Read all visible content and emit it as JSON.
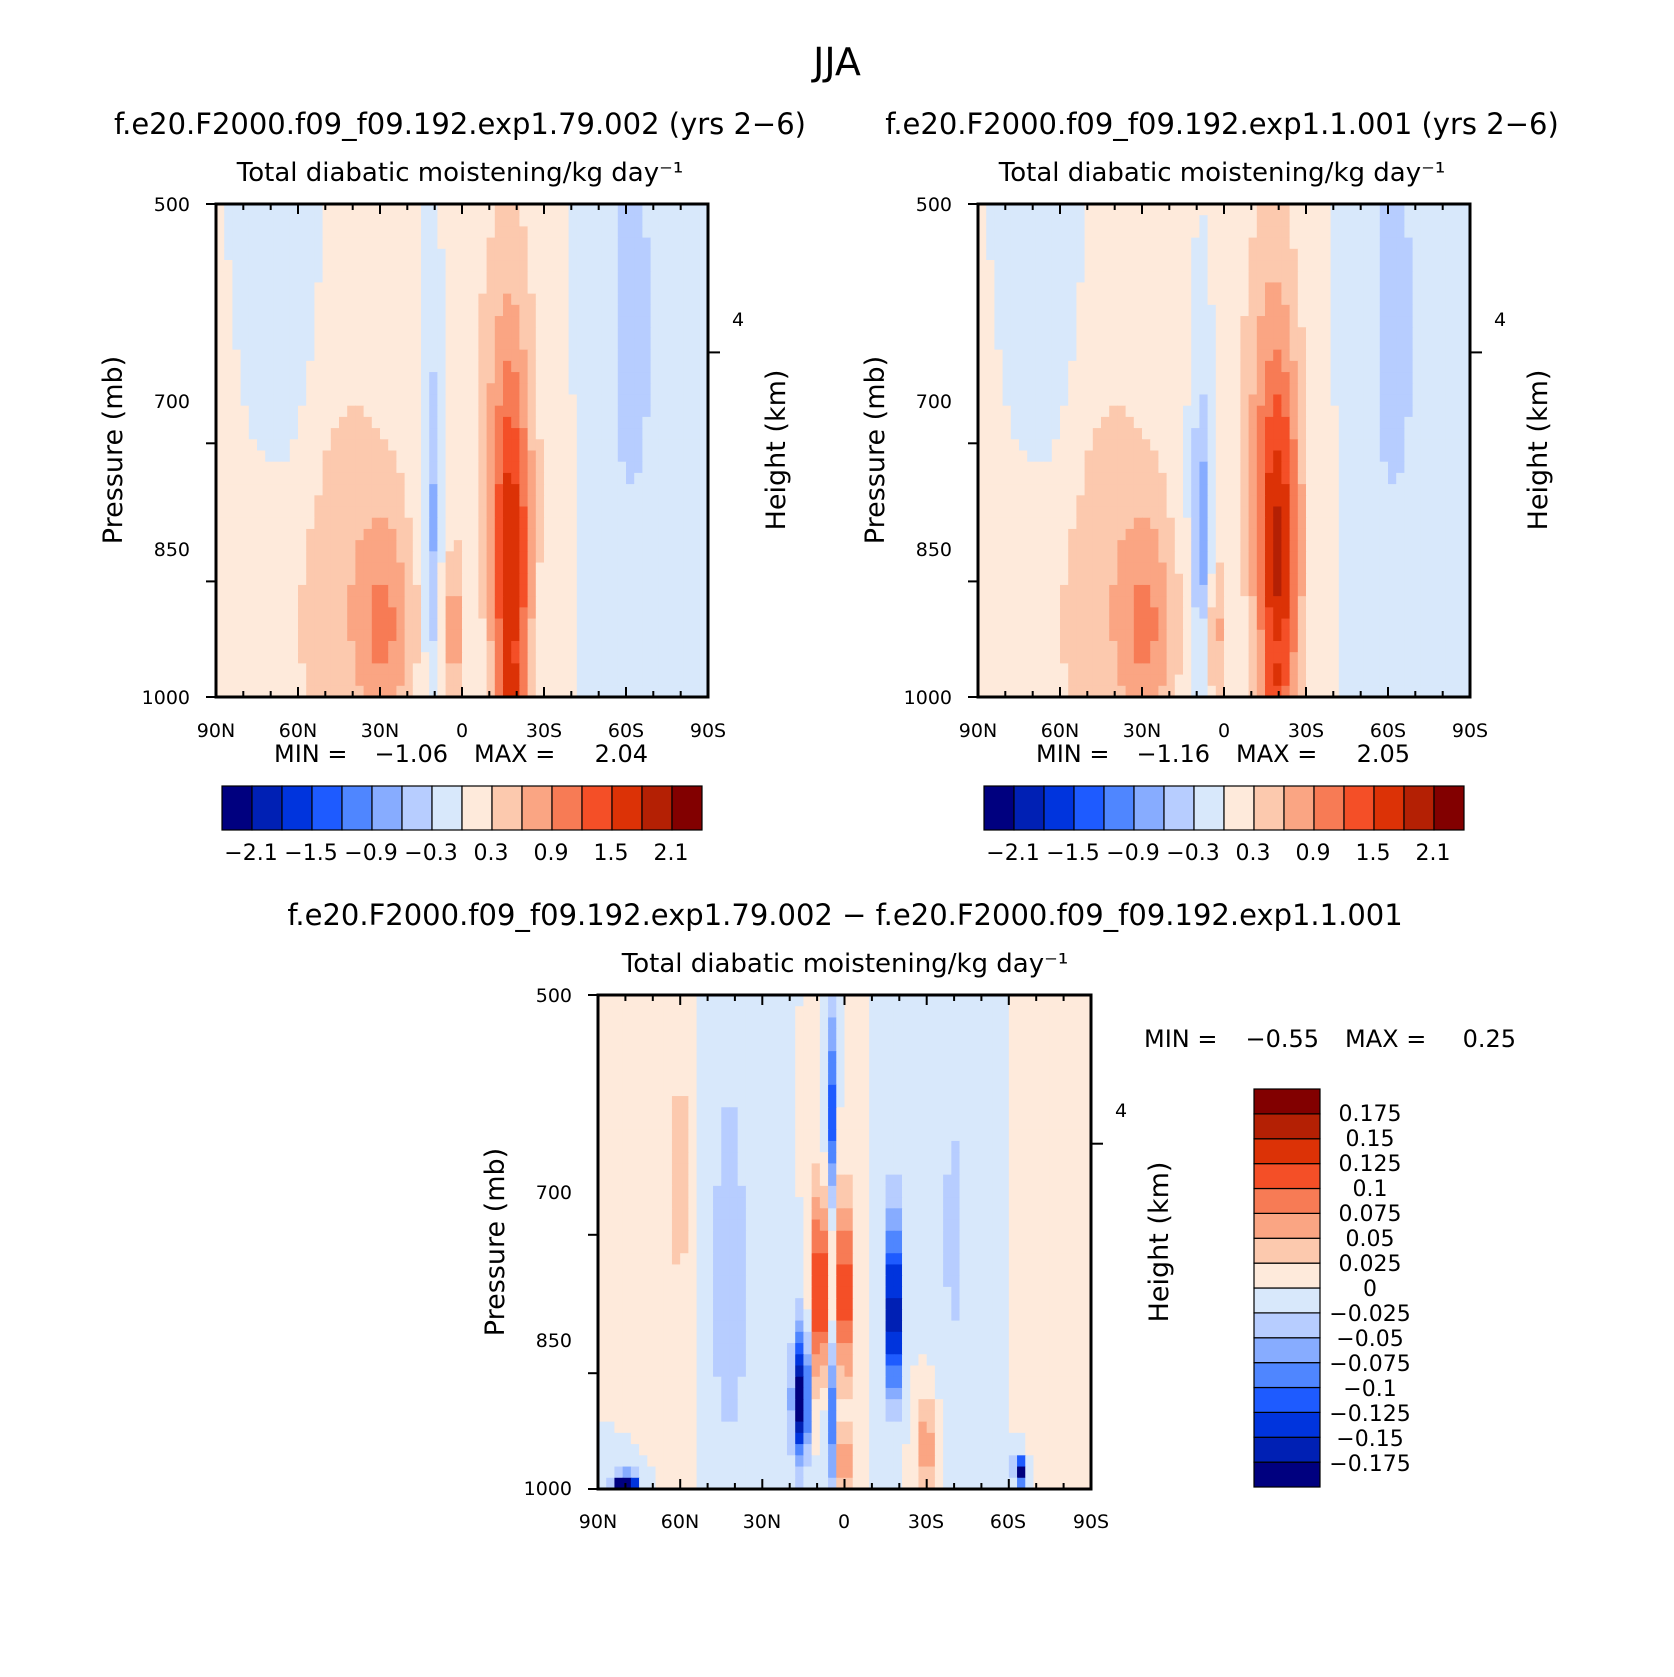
{
  "figure": {
    "season": "JJA"
  },
  "colors": {
    "abs": [
      "#00007f",
      "#0020b4",
      "#0034dd",
      "#1e5bff",
      "#4f86ff",
      "#87acff",
      "#b7cdff",
      "#d8e8fb",
      "#feeadb",
      "#fcc9ae",
      "#faa583",
      "#f77b55",
      "#f44f27",
      "#dc3206",
      "#b42004",
      "#820000"
    ],
    "diff": [
      "#00007f",
      "#0020b4",
      "#0034dd",
      "#1e5bff",
      "#4f86ff",
      "#87acff",
      "#b7cdff",
      "#d8e8fb",
      "#feeadb",
      "#fcc9ae",
      "#faa583",
      "#f77b55",
      "#f44f27",
      "#dc3206",
      "#b42004",
      "#820000"
    ]
  },
  "chart_data": [
    {
      "id": "panel1",
      "type": "heatmap",
      "run_title": "f.e20.F2000.f09_f09.192.exp1.79.002 (yrs 2−6)",
      "variable_title": "Total diabatic moistening/kg day⁻¹",
      "xlabel": "",
      "ylabel": "Pressure (mb)",
      "ylabel_right": "Height (km)",
      "x_tick_labels": [
        "90N",
        "60N",
        "30N",
        "0",
        "30S",
        "60S",
        "90S"
      ],
      "x_range": [
        90,
        -90
      ],
      "y_tick_labels": [
        "500",
        "700",
        "850",
        "1000"
      ],
      "y_range_mb": [
        500,
        1000
      ],
      "right_tick_labels": [
        "4"
      ],
      "min_label": "MIN =",
      "min_value": "−1.06",
      "max_label": "MAX =",
      "max_value": "2.04",
      "colorbar_levels": [
        -2.1,
        -1.8,
        -1.5,
        -1.2,
        -0.9,
        -0.6,
        -0.3,
        0,
        0.3,
        0.6,
        0.9,
        1.2,
        1.5,
        1.8,
        2.1
      ],
      "colorbar_tick_labels": [
        "−2.1",
        "−1.5",
        "−0.9",
        "−0.3",
        "0.3",
        "0.9",
        "1.5",
        "2.1"
      ],
      "features": [
        {
          "lat": -18,
          "p": 860,
          "value": 1.55,
          "wx": 7,
          "wp": 200
        },
        {
          "lat": -18,
          "p": 985,
          "value": 0.55,
          "wx": 5,
          "wp": 35
        },
        {
          "lat": -16,
          "p": 680,
          "value": 0.55,
          "wx": 13,
          "wp": 220
        },
        {
          "lat": 3,
          "p": 910,
          "value": 0.75,
          "wx": 4,
          "wp": 100
        },
        {
          "lat": 28,
          "p": 910,
          "value": 0.75,
          "wx": 11,
          "wp": 150
        },
        {
          "lat": 46,
          "p": 850,
          "value": 0.45,
          "wx": 24,
          "wp": 300
        },
        {
          "lat": 11,
          "p": 790,
          "value": -0.75,
          "wx": 3,
          "wp": 180
        },
        {
          "lat": 63,
          "p": 570,
          "value": -0.35,
          "wx": 12,
          "wp": 200
        },
        {
          "lat": -62,
          "p": 600,
          "value": -0.4,
          "wx": 12,
          "wp": 260
        }
      ]
    },
    {
      "id": "panel2",
      "type": "heatmap",
      "run_title": "f.e20.F2000.f09_f09.192.exp1.1.001 (yrs 2−6)",
      "variable_title": "Total diabatic moistening/kg day⁻¹",
      "xlabel": "",
      "ylabel": "Pressure (mb)",
      "ylabel_right": "Height (km)",
      "x_tick_labels": [
        "90N",
        "60N",
        "30N",
        "0",
        "30S",
        "60S",
        "90S"
      ],
      "x_range": [
        90,
        -90
      ],
      "y_tick_labels": [
        "500",
        "700",
        "850",
        "1000"
      ],
      "y_range_mb": [
        500,
        1000
      ],
      "right_tick_labels": [
        "4"
      ],
      "min_label": "MIN =",
      "min_value": "−1.16",
      "max_label": "MAX =",
      "max_value": "2.05",
      "colorbar_levels": [
        -2.1,
        -1.8,
        -1.5,
        -1.2,
        -0.9,
        -0.6,
        -0.3,
        0,
        0.3,
        0.6,
        0.9,
        1.2,
        1.5,
        1.8,
        2.1
      ],
      "colorbar_tick_labels": [
        "−2.1",
        "−1.5",
        "−0.9",
        "−0.3",
        "0.3",
        "0.9",
        "1.5",
        "2.1"
      ],
      "features": [
        {
          "lat": -20,
          "p": 840,
          "value": 1.6,
          "wx": 8,
          "wp": 210
        },
        {
          "lat": -18,
          "p": 985,
          "value": 0.5,
          "wx": 5,
          "wp": 35
        },
        {
          "lat": -16,
          "p": 680,
          "value": 0.5,
          "wx": 13,
          "wp": 220
        },
        {
          "lat": 3,
          "p": 910,
          "value": 0.7,
          "wx": 4,
          "wp": 100
        },
        {
          "lat": 28,
          "p": 910,
          "value": 0.75,
          "wx": 11,
          "wp": 150
        },
        {
          "lat": 46,
          "p": 850,
          "value": 0.45,
          "wx": 24,
          "wp": 300
        },
        {
          "lat": 8,
          "p": 800,
          "value": -0.9,
          "wx": 4,
          "wp": 150
        },
        {
          "lat": 63,
          "p": 570,
          "value": -0.35,
          "wx": 12,
          "wp": 200
        },
        {
          "lat": -62,
          "p": 600,
          "value": -0.4,
          "wx": 12,
          "wp": 260
        }
      ]
    },
    {
      "id": "panel3",
      "type": "heatmap",
      "run_title": "f.e20.F2000.f09_f09.192.exp1.79.002 − f.e20.F2000.f09_f09.192.exp1.1.001",
      "variable_title": "Total diabatic moistening/kg day⁻¹",
      "xlabel": "",
      "ylabel": "Pressure (mb)",
      "ylabel_right": "Height (km)",
      "x_tick_labels": [
        "90N",
        "60N",
        "30N",
        "0",
        "30S",
        "60S",
        "90S"
      ],
      "x_range": [
        90,
        -90
      ],
      "y_tick_labels": [
        "500",
        "700",
        "850",
        "1000"
      ],
      "y_range_mb": [
        500,
        1000
      ],
      "right_tick_labels": [
        "4"
      ],
      "min_label": "MIN =",
      "min_value": "−0.55",
      "max_label": "MAX =",
      "max_value": "0.25",
      "colorbar_levels": [
        -0.175,
        -0.15,
        -0.125,
        -0.1,
        -0.075,
        -0.05,
        -0.025,
        0,
        0.025,
        0.05,
        0.075,
        0.1,
        0.125,
        0.15,
        0.175
      ],
      "colorbar_tick_labels": [
        "−0.175",
        "−0.15",
        "−0.125",
        "−0.1",
        "−0.075",
        "−0.05",
        "−0.025",
        "0",
        "0.025",
        "0.05",
        "0.075",
        "0.1",
        "0.125",
        "0.15",
        "0.175"
      ],
      "features": [
        {
          "lat": 9,
          "p": 760,
          "value": 0.16,
          "wx": 3,
          "wp": 100
        },
        {
          "lat": 0,
          "p": 760,
          "value": 0.14,
          "wx": 3,
          "wp": 100
        },
        {
          "lat": 0,
          "p": 960,
          "value": 0.12,
          "wx": 2,
          "wp": 40
        },
        {
          "lat": -18,
          "p": 780,
          "value": -0.2,
          "wx": 3,
          "wp": 100
        },
        {
          "lat": 16,
          "p": 880,
          "value": -0.2,
          "wx": 3,
          "wp": 80
        },
        {
          "lat": 5,
          "p": 590,
          "value": -0.12,
          "wx": 2,
          "wp": 80
        },
        {
          "lat": 5,
          "p": 900,
          "value": -0.1,
          "wx": 2,
          "wp": 100
        },
        {
          "lat": 80,
          "p": 995,
          "value": -0.3,
          "wx": 4,
          "wp": 15
        },
        {
          "lat": -64,
          "p": 975,
          "value": -0.2,
          "wx": 2,
          "wp": 20
        },
        {
          "lat": -30,
          "p": 940,
          "value": 0.07,
          "wx": 4,
          "wp": 60
        },
        {
          "lat": 60,
          "p": 650,
          "value": 0.03,
          "wx": 5,
          "wp": 250
        },
        {
          "lat": -75,
          "p": 700,
          "value": 0.025,
          "wx": 6,
          "wp": 300
        },
        {
          "lat": 42,
          "p": 750,
          "value": -0.04,
          "wx": 8,
          "wp": 250
        },
        {
          "lat": -40,
          "p": 700,
          "value": -0.03,
          "wx": 8,
          "wp": 200
        }
      ]
    }
  ]
}
